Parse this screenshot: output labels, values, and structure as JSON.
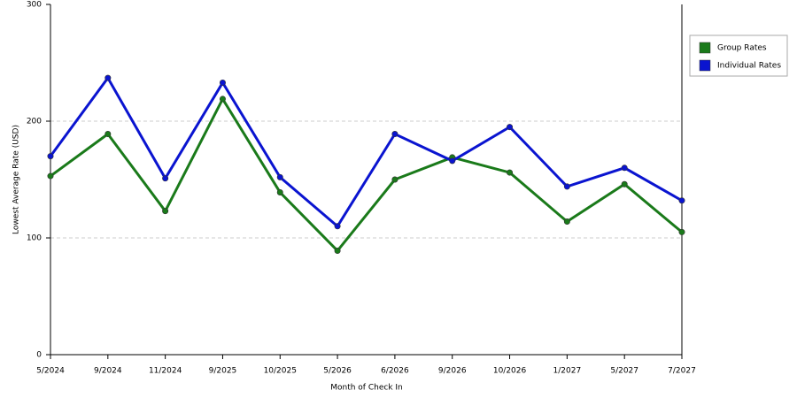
{
  "chart_data": {
    "type": "line",
    "x_label": "Month of Check In",
    "y_label": "Lowest Average Rate (USD)",
    "categories": [
      "5/2024",
      "9/2024",
      "11/2024",
      "9/2025",
      "10/2025",
      "5/2026",
      "6/2026",
      "9/2026",
      "10/2026",
      "1/2027",
      "5/2027",
      "7/2027"
    ],
    "series": [
      {
        "name": "Group Rates",
        "color": "#1a7a1a",
        "values": [
          153,
          189,
          123,
          219,
          139,
          89,
          150,
          169,
          156,
          114,
          146,
          105
        ]
      },
      {
        "name": "Individual Rates",
        "color": "#0a14d0",
        "values": [
          170,
          237,
          151,
          233,
          152,
          110,
          189,
          166,
          195,
          144,
          160,
          132
        ]
      }
    ],
    "ylim": [
      0,
      300
    ],
    "yticks": [
      0,
      100,
      200,
      300
    ],
    "grid": true
  }
}
